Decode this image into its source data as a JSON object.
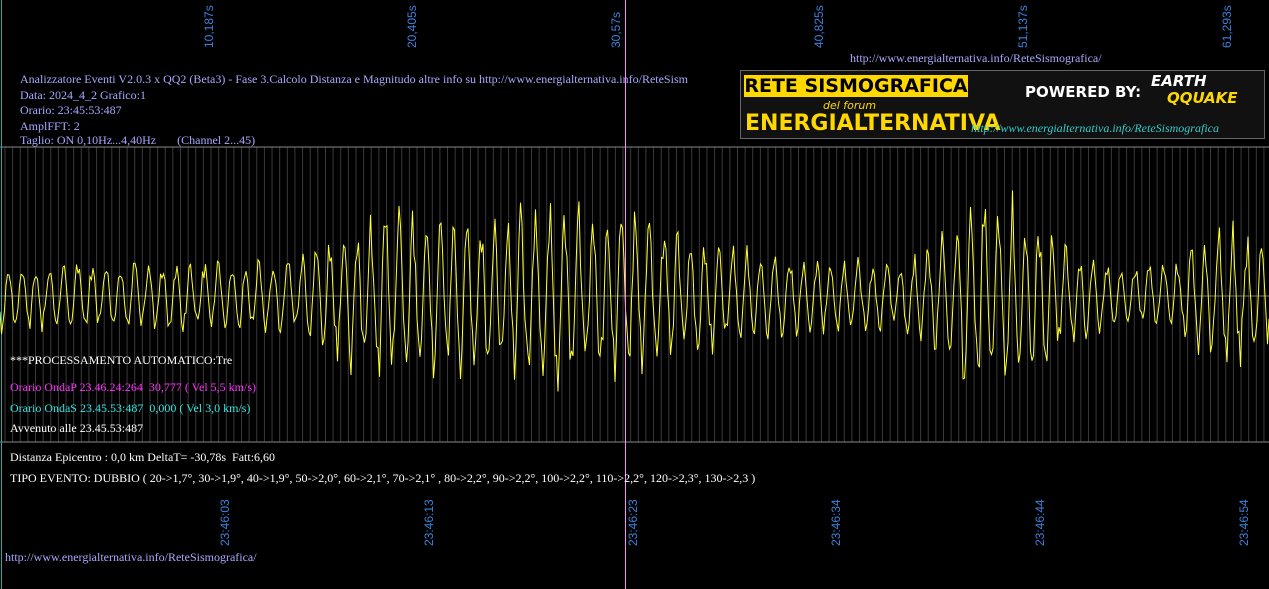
{
  "top_axis": [
    "10,187s",
    "20,405s",
    "30,57s",
    "40,825s",
    "51,137s",
    "61,293s"
  ],
  "bottom_axis": [
    "23:46:03",
    "23:46:13",
    "23:46:23",
    "23:46:34",
    "23:46:44",
    "23:46:54"
  ],
  "top_url": "http://www.energialternativa.info/ReteSismografica/",
  "header": [
    "Analizzatore Eventi V2.0.3 x QQ2 (Beta3) - Fase 3.Calcolo Distanza e Magnitudo altre info su http://www.energialternativa.info/ReteSism",
    "Data: 2024_4_2 Grafico:1",
    "Orario: 23:45:53:487",
    "AmplFFT: 2",
    "Taglio: ON 0,10Hz...4,40Hz       (Channel 2...45)"
  ],
  "logo": {
    "title": "RETE SISMOGRAFICA",
    "subtitle": "del forum",
    "forum": "ENERGIALTERNATIVA",
    "powered_by": "POWERED BY:",
    "brand_top": "EARTH",
    "brand_bottom": "QQUAKE",
    "url": "http://www.energialternativa.info/ReteSismografica"
  },
  "info": {
    "processing": "***PROCESSAMENTO AUTOMATICO:Tre",
    "onda_p": "Orario OndaP 23.46.24:264  30,777 ( Vel 5,5 km/s)",
    "onda_s": "Orario OndaS 23.45.53:487  0,000 ( Vel 3,0 km/s)",
    "avvenuto": "Avvenuto alle 23.45.53:487",
    "distanza": "Distanza Epicentro : 0,0 km DeltaT= -30,78s  Fatt:6,60",
    "tipo_evento": "TIPO EVENTO: DUBBIO ( 20->1,7°, 30->1,9°, 40->1,9°, 50->2,0°, 60->2,1°, 70->2,1° , 80->2,2°, 90->2,2°, 100->2,2°, 110->2,2°, 120->2,3°, 130->2,3 )"
  },
  "bottom_url": "http://www.energialternativa.info/ReteSismografica/"
}
